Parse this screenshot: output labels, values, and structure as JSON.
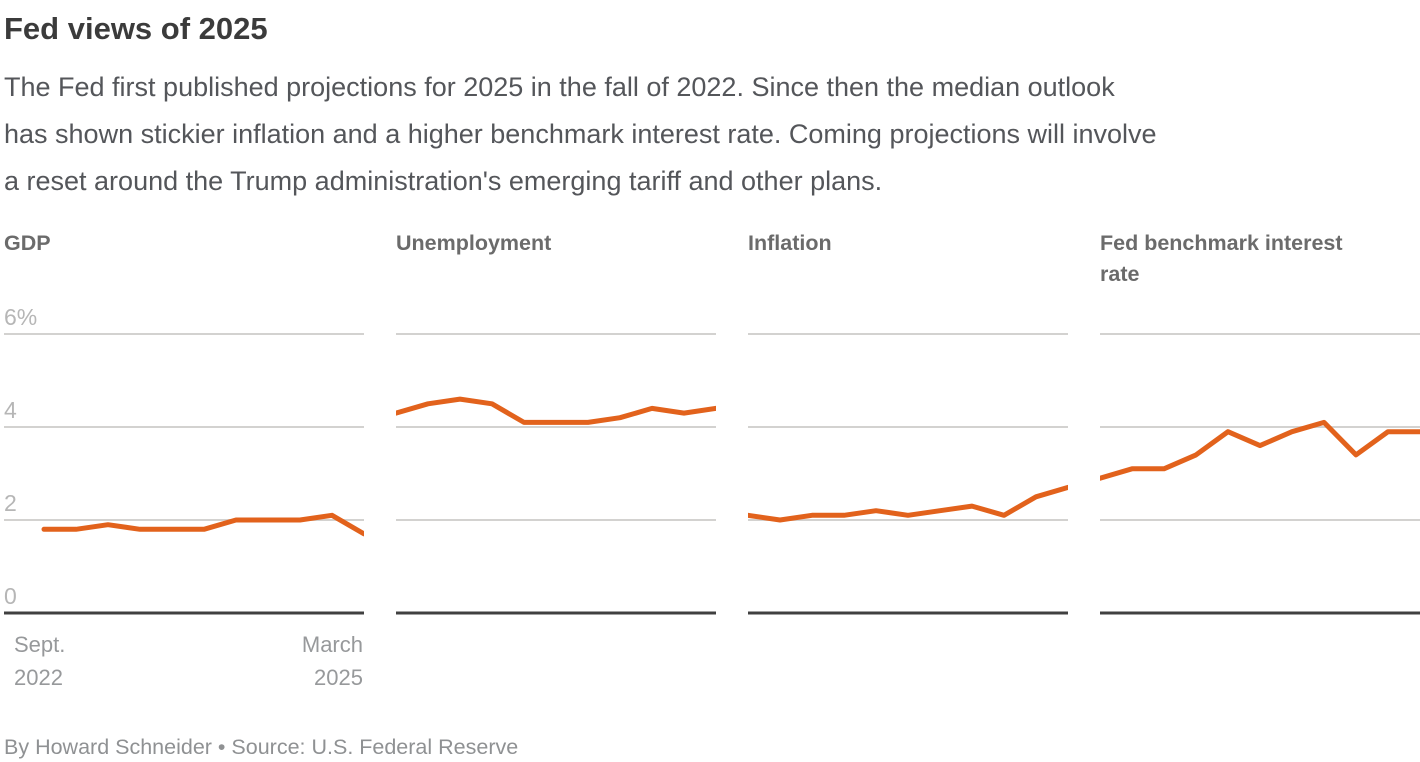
{
  "title": "Fed views of 2025",
  "subtitle_lines": [
    "The Fed first published projections for 2025 in the fall of 2022. Since then the median outlook",
    "has shown stickier inflation and a higher benchmark interest rate. Coming projections will involve",
    "a reset around the Trump administration's emerging tariff and other plans."
  ],
  "footer": "By Howard Schneider • Source: U.S. Federal Reserve",
  "x_axis": {
    "start_lines": [
      "Sept.",
      "2022"
    ],
    "end_lines": [
      "March",
      "2025"
    ]
  },
  "y_axis": {
    "ticks": [
      {
        "label": "6%",
        "value": 6
      },
      {
        "label": "4",
        "value": 4
      },
      {
        "label": "2",
        "value": 2
      },
      {
        "label": "0",
        "value": 0
      }
    ]
  },
  "colors": {
    "line": "#e2621c",
    "grid": "#d3d2d0",
    "axis": "#404040",
    "tick_label": "#b6b6b6",
    "title": "#3b3b3b",
    "subtitle": "#54565a",
    "panel_title": "#6b6b6b",
    "x_label": "#97999b",
    "footer": "#8f9193"
  },
  "chart_data": [
    {
      "type": "line",
      "title": "GDP",
      "x_endpoint_labels": [
        "Sept. 2022",
        "March 2025"
      ],
      "ylim": [
        0,
        6
      ],
      "yticks": [
        "6%",
        "4",
        "2",
        "0"
      ],
      "grid": true,
      "values": [
        1.8,
        1.8,
        1.9,
        1.8,
        1.8,
        1.8,
        2.0,
        2.0,
        2.0,
        2.1,
        1.7
      ]
    },
    {
      "type": "line",
      "title": "Unemployment",
      "x_endpoint_labels": [
        "Sept. 2022",
        "March 2025"
      ],
      "ylim": [
        0,
        6
      ],
      "yticks": [
        "6%",
        "4",
        "2",
        "0"
      ],
      "grid": true,
      "values": [
        4.3,
        4.5,
        4.6,
        4.5,
        4.1,
        4.1,
        4.1,
        4.2,
        4.4,
        4.3,
        4.4
      ]
    },
    {
      "type": "line",
      "title": "Inflation",
      "x_endpoint_labels": [
        "Sept. 2022",
        "March 2025"
      ],
      "ylim": [
        0,
        6
      ],
      "yticks": [
        "6%",
        "4",
        "2",
        "0"
      ],
      "grid": true,
      "values": [
        2.1,
        2.0,
        2.1,
        2.1,
        2.2,
        2.1,
        2.2,
        2.3,
        2.1,
        2.5,
        2.7
      ]
    },
    {
      "type": "line",
      "title": "Fed benchmark interest rate",
      "x_endpoint_labels": [
        "Sept. 2022",
        "March 2025"
      ],
      "ylim": [
        0,
        6
      ],
      "yticks": [
        "6%",
        "4",
        "2",
        "0"
      ],
      "grid": true,
      "values": [
        2.9,
        3.1,
        3.1,
        3.4,
        3.9,
        3.6,
        3.9,
        4.1,
        3.4,
        3.9,
        3.9
      ]
    }
  ]
}
